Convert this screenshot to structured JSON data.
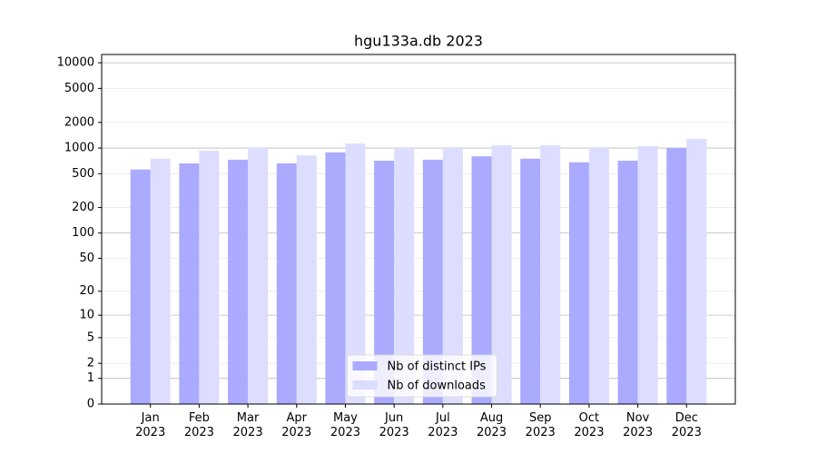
{
  "chart_data": {
    "type": "bar",
    "title": "hgu133a.db 2023",
    "categories": [
      "Jan\n2023",
      "Feb\n2023",
      "Mar\n2023",
      "Apr\n2023",
      "May\n2023",
      "Jun\n2023",
      "Jul\n2023",
      "Aug\n2023",
      "Sep\n2023",
      "Oct\n2023",
      "Nov\n2023",
      "Dec\n2023"
    ],
    "series": [
      {
        "name": "Nb of distinct IPs",
        "color": "#aaaaff",
        "values": [
          560,
          660,
          730,
          660,
          890,
          710,
          730,
          800,
          750,
          680,
          710,
          1000
        ]
      },
      {
        "name": "Nb of downloads",
        "color": "#ddddff",
        "values": [
          750,
          930,
          1020,
          820,
          1130,
          1000,
          1000,
          1080,
          1080,
          1000,
          1050,
          1280
        ]
      }
    ],
    "yscale": "log1p",
    "ylim": [
      0,
      12500
    ],
    "yticks": [
      0,
      1,
      2,
      5,
      10,
      20,
      50,
      100,
      200,
      500,
      1000,
      2000,
      5000,
      10000
    ],
    "grid": true,
    "legend": "lower center"
  }
}
